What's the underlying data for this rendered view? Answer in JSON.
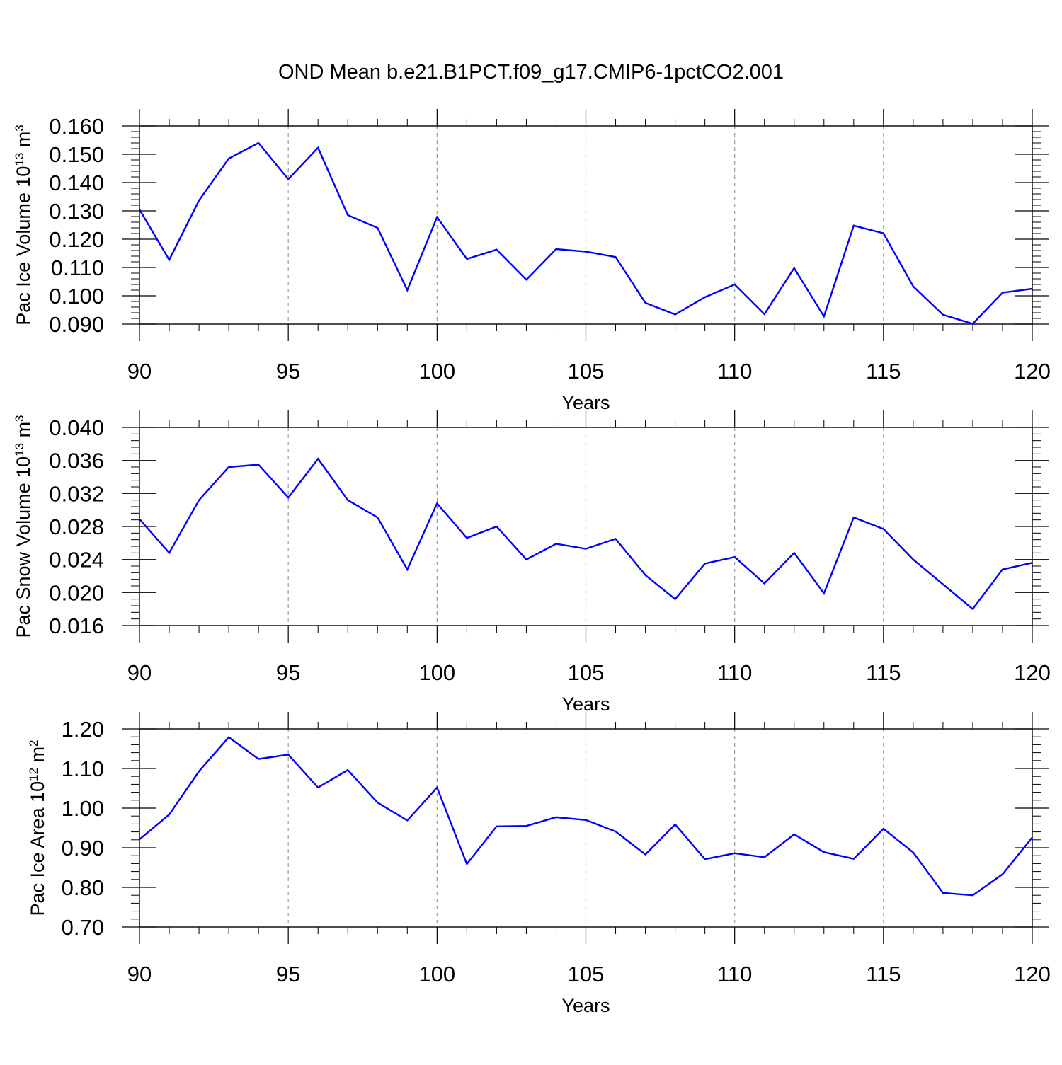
{
  "figure": {
    "title": "OND Mean b.e21.B1PCT.f09_g17.CMIP6-1pctCO2.001"
  },
  "chart_data": [
    {
      "type": "line",
      "title": "",
      "xlabel": "Years",
      "ylabel": "Pac Ice Volume 10",
      "ylabel_exp": "13",
      "ylabel_unit": " m",
      "ylabel_unit_exp": "3",
      "xlim": [
        90,
        120
      ],
      "ylim": [
        0.09,
        0.16
      ],
      "x_ticks": [
        90,
        95,
        100,
        105,
        110,
        115,
        120
      ],
      "x_tick_labels": [
        "90",
        "95",
        "100",
        "105",
        "110",
        "115",
        "120"
      ],
      "y_ticks": [
        0.09,
        0.1,
        0.11,
        0.12,
        0.13,
        0.14,
        0.15,
        0.16
      ],
      "y_tick_labels": [
        "0.090",
        "0.100",
        "0.110",
        "0.120",
        "0.130",
        "0.140",
        "0.150",
        "0.160"
      ],
      "grid": "vertical dashed at major x ticks",
      "line_color": "#0000ff",
      "x": [
        90,
        91,
        92,
        93,
        94,
        95,
        96,
        97,
        98,
        99,
        100,
        101,
        102,
        103,
        104,
        105,
        106,
        107,
        108,
        109,
        110,
        111,
        112,
        113,
        114,
        115,
        116,
        117,
        118,
        119,
        120
      ],
      "y": [
        0.1305,
        0.1127,
        0.1337,
        0.1485,
        0.154,
        0.1412,
        0.1523,
        0.1285,
        0.124,
        0.102,
        0.1278,
        0.113,
        0.1163,
        0.1057,
        0.1165,
        0.1156,
        0.1137,
        0.0975,
        0.0934,
        0.0995,
        0.104,
        0.0935,
        0.1098,
        0.0927,
        0.1248,
        0.1221,
        0.1033,
        0.0933,
        0.0901,
        0.1011,
        0.1025
      ]
    },
    {
      "type": "line",
      "title": "",
      "xlabel": "Years",
      "ylabel": "Pac Snow Volume 10",
      "ylabel_exp": "13",
      "ylabel_unit": " m",
      "ylabel_unit_exp": "3",
      "xlim": [
        90,
        120
      ],
      "ylim": [
        0.016,
        0.04
      ],
      "x_ticks": [
        90,
        95,
        100,
        105,
        110,
        115,
        120
      ],
      "x_tick_labels": [
        "90",
        "95",
        "100",
        "105",
        "110",
        "115",
        "120"
      ],
      "y_ticks": [
        0.016,
        0.02,
        0.024,
        0.028,
        0.032,
        0.036,
        0.04
      ],
      "y_tick_labels": [
        "0.016",
        "0.020",
        "0.024",
        "0.028",
        "0.032",
        "0.036",
        "0.040"
      ],
      "grid": "vertical dashed at major x ticks",
      "line_color": "#0000ff",
      "x": [
        90,
        91,
        92,
        93,
        94,
        95,
        96,
        97,
        98,
        99,
        100,
        101,
        102,
        103,
        104,
        105,
        106,
        107,
        108,
        109,
        110,
        111,
        112,
        113,
        114,
        115,
        116,
        117,
        118,
        119,
        120
      ],
      "y": [
        0.0289,
        0.0248,
        0.0312,
        0.0352,
        0.0355,
        0.0315,
        0.0362,
        0.0312,
        0.0291,
        0.0228,
        0.0308,
        0.0266,
        0.028,
        0.024,
        0.0259,
        0.0253,
        0.0265,
        0.0221,
        0.0192,
        0.0235,
        0.0243,
        0.0211,
        0.0248,
        0.0199,
        0.0291,
        0.0277,
        0.024,
        0.021,
        0.018,
        0.0228,
        0.0236
      ]
    },
    {
      "type": "line",
      "title": "",
      "xlabel": "Years",
      "ylabel": "Pac Ice Area 10",
      "ylabel_exp": "12",
      "ylabel_unit": " m",
      "ylabel_unit_exp": "2",
      "xlim": [
        90,
        120
      ],
      "ylim": [
        0.7,
        1.2
      ],
      "x_ticks": [
        90,
        95,
        100,
        105,
        110,
        115,
        120
      ],
      "x_tick_labels": [
        "90",
        "95",
        "100",
        "105",
        "110",
        "115",
        "120"
      ],
      "y_ticks": [
        0.7,
        0.8,
        0.9,
        1.0,
        1.1,
        1.2
      ],
      "y_tick_labels": [
        "0.70",
        "0.80",
        "0.90",
        "1.00",
        "1.10",
        "1.20"
      ],
      "grid": "vertical dashed at major x ticks",
      "line_color": "#0000ff",
      "x": [
        90,
        91,
        92,
        93,
        94,
        95,
        96,
        97,
        98,
        99,
        100,
        101,
        102,
        103,
        104,
        105,
        106,
        107,
        108,
        109,
        110,
        111,
        112,
        113,
        114,
        115,
        116,
        117,
        118,
        119,
        120
      ],
      "y": [
        0.921,
        0.984,
        1.093,
        1.179,
        1.124,
        1.135,
        1.052,
        1.096,
        1.014,
        0.969,
        1.052,
        0.859,
        0.954,
        0.955,
        0.977,
        0.97,
        0.941,
        0.883,
        0.959,
        0.871,
        0.886,
        0.876,
        0.934,
        0.889,
        0.872,
        0.948,
        0.888,
        0.786,
        0.78,
        0.833,
        0.926
      ]
    }
  ]
}
